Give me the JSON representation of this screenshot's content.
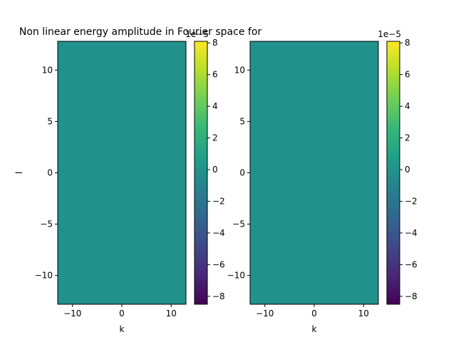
{
  "chart_data": [
    {
      "type": "heatmap",
      "title": "Non linear energy amplitude in Fourier space for",
      "xlabel": "k",
      "ylabel": "l",
      "xlim": [
        -13,
        13
      ],
      "ylim": [
        -12.8,
        12.8
      ],
      "x_ticks": [
        -10,
        0,
        10
      ],
      "x_tick_labels": [
        "−10",
        "0",
        "10"
      ],
      "y_ticks": [
        -10,
        -5,
        0,
        5,
        10
      ],
      "y_tick_labels": [
        "−10",
        "−5",
        "0",
        "5",
        "10"
      ],
      "field_value": 0,
      "field_color": "#21918c",
      "colorbar": {
        "colormap": "viridis",
        "range": [
          -8.5,
          8.1
        ],
        "ticks": [
          -8,
          -6,
          -4,
          -2,
          0,
          2,
          4,
          6,
          8
        ],
        "tick_labels": [
          "−8",
          "−6",
          "−4",
          "−2",
          "0",
          "2",
          "4",
          "6",
          "8"
        ],
        "offset_text": "1e−5"
      }
    },
    {
      "type": "heatmap",
      "title": "",
      "xlabel": "k",
      "ylabel": "",
      "xlim": [
        -13,
        13
      ],
      "ylim": [
        -12.8,
        12.8
      ],
      "x_ticks": [
        -10,
        0,
        10
      ],
      "x_tick_labels": [
        "−10",
        "0",
        "10"
      ],
      "y_ticks": [
        -10,
        -5,
        0,
        5,
        10
      ],
      "y_tick_labels": [
        "−10",
        "−5",
        "0",
        "5",
        "10"
      ],
      "field_value": 0,
      "field_color": "#21918c",
      "colorbar": {
        "colormap": "viridis",
        "range": [
          -8.5,
          8.1
        ],
        "ticks": [
          -8,
          -6,
          -4,
          -2,
          0,
          2,
          4,
          6,
          8
        ],
        "tick_labels": [
          "−8",
          "−6",
          "−4",
          "−2",
          "0",
          "2",
          "4",
          "6",
          "8"
        ],
        "offset_text": "1e−5"
      }
    }
  ]
}
